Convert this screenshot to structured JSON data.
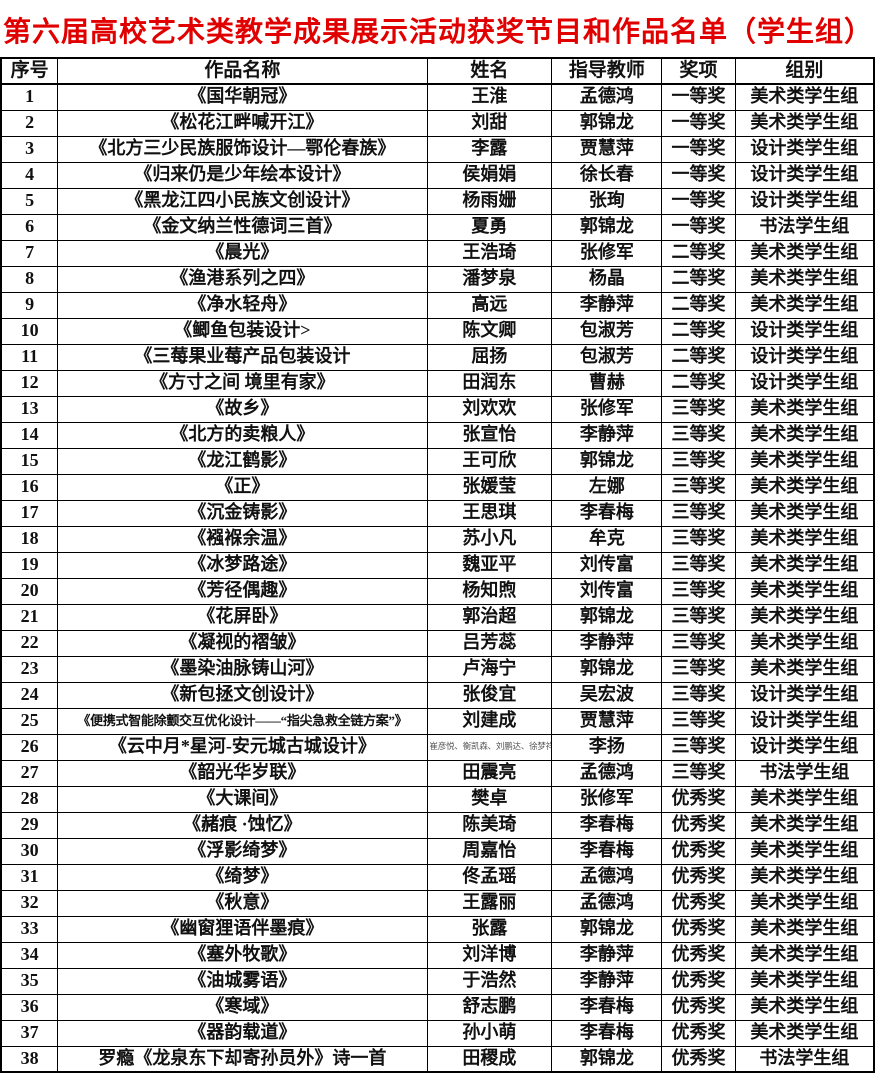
{
  "page": {
    "title": "第六届高校艺术类教学成果展示活动获奖节目和作品名单（学生组）"
  },
  "colors": {
    "title_red": "#e00000",
    "text": "#111111",
    "border": "#000000"
  },
  "table": {
    "columns": [
      "序号",
      "作品名称",
      "姓名",
      "指导教师",
      "奖项",
      "组别"
    ],
    "rows": [
      {
        "no": "1",
        "work": "《国华朝冠》",
        "name": "王淮",
        "teacher": "孟德鸿",
        "award": "一等奖",
        "group": "美术类学生组"
      },
      {
        "no": "2",
        "work": "《松花江畔喊开江》",
        "name": "刘甜",
        "teacher": "郭锦龙",
        "award": "一等奖",
        "group": "美术类学生组"
      },
      {
        "no": "3",
        "work": "《北方三少民族服饰设计—鄂伦春族》",
        "name": "李露",
        "teacher": "贾慧萍",
        "award": "一等奖",
        "group": "设计类学生组"
      },
      {
        "no": "4",
        "work": "《归来仍是少年绘本设计》",
        "name": "侯娟娟",
        "teacher": "徐长春",
        "award": "一等奖",
        "group": "设计类学生组"
      },
      {
        "no": "5",
        "work": "《黑龙江四小民族文创设计》",
        "name": "杨雨姗",
        "teacher": "张珣",
        "award": "一等奖",
        "group": "设计类学生组"
      },
      {
        "no": "6",
        "work": "《金文纳兰性德词三首》",
        "name": "夏勇",
        "teacher": "郭锦龙",
        "award": "一等奖",
        "group": "书法学生组"
      },
      {
        "no": "7",
        "work": "《晨光》",
        "name": "王浩琦",
        "teacher": "张修军",
        "award": "二等奖",
        "group": "美术类学生组"
      },
      {
        "no": "8",
        "work": "《渔港系列之四》",
        "name": "潘梦泉",
        "teacher": "杨晶",
        "award": "二等奖",
        "group": "美术类学生组"
      },
      {
        "no": "9",
        "work": "《净水轻舟》",
        "name": "高远",
        "teacher": "李静萍",
        "award": "二等奖",
        "group": "美术类学生组"
      },
      {
        "no": "10",
        "work": "《鲫鱼包装设计>",
        "name": "陈文卿",
        "teacher": "包淑芳",
        "award": "二等奖",
        "group": "设计类学生组"
      },
      {
        "no": "11",
        "work": "《三莓果业莓产品包装设计",
        "name": "屈扬",
        "teacher": "包淑芳",
        "award": "二等奖",
        "group": "设计类学生组"
      },
      {
        "no": "12",
        "work": "《方寸之间 境里有家》",
        "name": "田润东",
        "teacher": "曹赫",
        "award": "二等奖",
        "group": "设计类学生组"
      },
      {
        "no": "13",
        "work": "《故乡》",
        "name": "刘欢欢",
        "teacher": "张修军",
        "award": "三等奖",
        "group": "美术类学生组"
      },
      {
        "no": "14",
        "work": "《北方的卖粮人》",
        "name": "张宣怡",
        "teacher": "李静萍",
        "award": "三等奖",
        "group": "美术类学生组"
      },
      {
        "no": "15",
        "work": "《龙江鹤影》",
        "name": "王可欣",
        "teacher": "郭锦龙",
        "award": "三等奖",
        "group": "美术类学生组"
      },
      {
        "no": "16",
        "work": "《正》",
        "name": "张媛莹",
        "teacher": "左娜",
        "award": "三等奖",
        "group": "美术类学生组"
      },
      {
        "no": "17",
        "work": "《沉金铸影》",
        "name": "王思琪",
        "teacher": "李春梅",
        "award": "三等奖",
        "group": "美术类学生组"
      },
      {
        "no": "18",
        "work": "《襁褓余温》",
        "name": "苏小凡",
        "teacher": "牟克",
        "award": "三等奖",
        "group": "美术类学生组"
      },
      {
        "no": "19",
        "work": "《冰梦路途》",
        "name": "魏亚平",
        "teacher": "刘传富",
        "award": "三等奖",
        "group": "美术类学生组"
      },
      {
        "no": "20",
        "work": "《芳径偶趣》",
        "name": "杨知煦",
        "teacher": "刘传富",
        "award": "三等奖",
        "group": "美术类学生组"
      },
      {
        "no": "21",
        "work": "《花屏卧》",
        "name": "郭治超",
        "teacher": "郭锦龙",
        "award": "三等奖",
        "group": "美术类学生组"
      },
      {
        "no": "22",
        "work": "《凝视的褶皱》",
        "name": "吕芳蕊",
        "teacher": "李静萍",
        "award": "三等奖",
        "group": "美术类学生组"
      },
      {
        "no": "23",
        "work": "《墨染油脉铸山河》",
        "name": "卢海宁",
        "teacher": "郭锦龙",
        "award": "三等奖",
        "group": "美术类学生组"
      },
      {
        "no": "24",
        "work": "《新包拯文创设计》",
        "name": "张俊宜",
        "teacher": "吴宏波",
        "award": "三等奖",
        "group": "设计类学生组"
      },
      {
        "no": "25",
        "work": "《便携式智能除颤交互优化设计——“指尖急救全链方案”》",
        "work_small": true,
        "name": "刘建成",
        "teacher": "贾慧萍",
        "award": "三等奖",
        "group": "设计类学生组"
      },
      {
        "no": "26",
        "work": "《云中月*星河-安元城古城设计》",
        "name": "崔彦悦、衡凯森、刘鹏达、徐梦祥",
        "name_small": true,
        "teacher": "李扬",
        "award": "三等奖",
        "group": "设计类学生组"
      },
      {
        "no": "27",
        "work": "《韶光华岁联》",
        "name": "田震亮",
        "teacher": "孟德鸿",
        "award": "三等奖",
        "group": "书法学生组"
      },
      {
        "no": "28",
        "work": "《大课间》",
        "name": "樊卓",
        "teacher": "张修军",
        "award": "优秀奖",
        "group": "美术类学生组"
      },
      {
        "no": "29",
        "work": "《赭痕 ·蚀忆》",
        "name": "陈美琦",
        "teacher": "李春梅",
        "award": "优秀奖",
        "group": "美术类学生组"
      },
      {
        "no": "30",
        "work": "《浮影绮梦》",
        "name": "周嘉怡",
        "teacher": "李春梅",
        "award": "优秀奖",
        "group": "美术类学生组"
      },
      {
        "no": "31",
        "work": "《绮梦》",
        "name": "佟孟瑶",
        "teacher": "孟德鸿",
        "award": "优秀奖",
        "group": "美术类学生组"
      },
      {
        "no": "32",
        "work": "《秋意》",
        "name": "王露丽",
        "teacher": "孟德鸿",
        "award": "优秀奖",
        "group": "美术类学生组"
      },
      {
        "no": "33",
        "work": "《幽窗狸语伴墨痕》",
        "name": "张露",
        "teacher": "郭锦龙",
        "award": "优秀奖",
        "group": "美术类学生组"
      },
      {
        "no": "34",
        "work": "《塞外牧歌》",
        "name": "刘洋博",
        "teacher": "李静萍",
        "award": "优秀奖",
        "group": "美术类学生组"
      },
      {
        "no": "35",
        "work": "《油城雾语》",
        "name": "于浩然",
        "teacher": "李静萍",
        "award": "优秀奖",
        "group": "美术类学生组"
      },
      {
        "no": "36",
        "work": "《寒域》",
        "name": "舒志鹏",
        "teacher": "李春梅",
        "award": "优秀奖",
        "group": "美术类学生组"
      },
      {
        "no": "37",
        "work": "《器韵载道》",
        "name": "孙小萌",
        "teacher": "李春梅",
        "award": "优秀奖",
        "group": "美术类学生组"
      },
      {
        "no": "38",
        "work": "罗瘾《龙泉东下却寄孙员外》诗一首",
        "name": "田稷成",
        "teacher": "郭锦龙",
        "award": "优秀奖",
        "group": "书法学生组"
      }
    ]
  }
}
